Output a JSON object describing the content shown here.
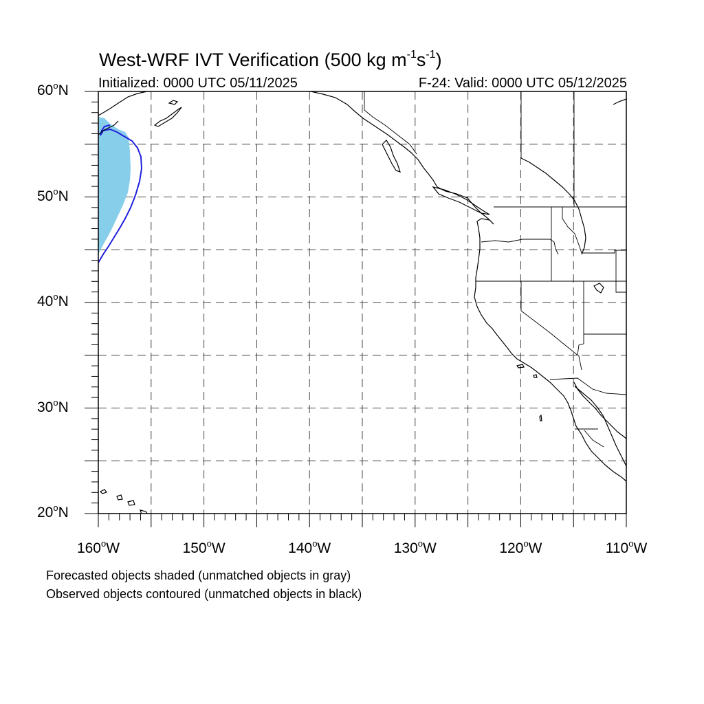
{
  "map": {
    "title_main": "West-WRF IVT Verification (500 kg m",
    "title_exp1": "-1",
    "title_mid": "s",
    "title_exp2": "-1",
    "title_close": ")",
    "initialized": "Initialized: 0000 UTC 05/11/2025",
    "valid": "F-24: Valid: 0000 UTC 05/12/2025",
    "lat_labels": [
      {
        "deg": "60",
        "hem": "N",
        "value": 60
      },
      {
        "deg": "50",
        "hem": "N",
        "value": 50
      },
      {
        "deg": "40",
        "hem": "N",
        "value": 40
      },
      {
        "deg": "30",
        "hem": "N",
        "value": 30
      },
      {
        "deg": "20",
        "hem": "N",
        "value": 20
      }
    ],
    "lon_labels": [
      {
        "deg": "160",
        "hem": "W",
        "value": -160
      },
      {
        "deg": "150",
        "hem": "W",
        "value": -150
      },
      {
        "deg": "140",
        "hem": "W",
        "value": -140
      },
      {
        "deg": "130",
        "hem": "W",
        "value": -130
      },
      {
        "deg": "120",
        "hem": "W",
        "value": -120
      },
      {
        "deg": "110",
        "hem": "W",
        "value": -110
      }
    ],
    "degree_symbol": "o",
    "extent": {
      "lon_min": -160,
      "lon_max": -110,
      "lat_min": 20,
      "lat_max": 60
    },
    "grid_spacing_deg": 5,
    "gridlines": "dashed",
    "colors": {
      "forecast_matched": "#87ceeb",
      "observed_matched": "#1f1fdd",
      "coastline": "#000000"
    },
    "notes": [
      "Forecasted objects shaded (unmatched objects in gray)",
      "Observed objects contoured (unmatched objects in black)"
    ]
  }
}
